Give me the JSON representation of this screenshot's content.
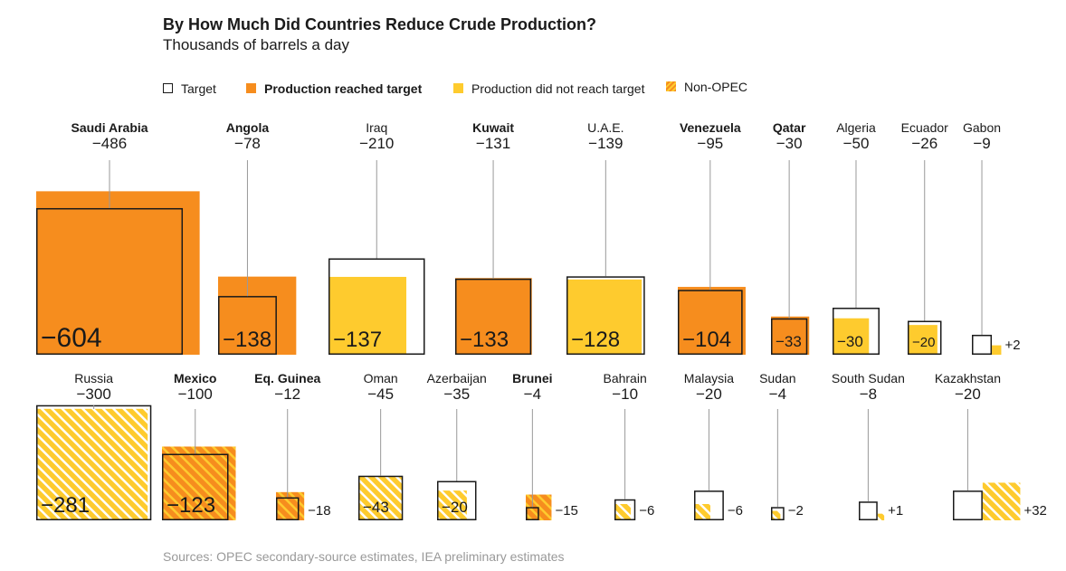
{
  "header": {
    "title": "By How Much Did Countries Reduce Crude Production?",
    "subtitle": "Thousands of barrels a day"
  },
  "legend": {
    "target": "Target",
    "reached": "Production reached target",
    "not_reached": "Production did not reach target",
    "non_opec": "Non-OPEC"
  },
  "source": "Sources: OPEC secondary-source estimates, IEA preliminary estimates",
  "colors": {
    "reached": "#f68d1e",
    "not_reached": "#fecb2e",
    "target_outline": "#1a1a1a",
    "leader_line": "#999999"
  },
  "chart_data": {
    "type": "square-area comparison",
    "title": "By How Much Did Countries Reduce Crude Production?",
    "subtitle": "Thousands of barrels a day",
    "rows": [
      {
        "group": "OPEC",
        "countries": [
          {
            "name": "Saudi Arabia",
            "target": "−486",
            "actual": "−604",
            "reached": true,
            "bold": true
          },
          {
            "name": "Angola",
            "target": "−78",
            "actual": "−138",
            "reached": true,
            "bold": true
          },
          {
            "name": "Iraq",
            "target": "−210",
            "actual": "−137",
            "reached": false,
            "bold": false
          },
          {
            "name": "Kuwait",
            "target": "−131",
            "actual": "−133",
            "reached": true,
            "bold": true
          },
          {
            "name": "U.A.E.",
            "target": "−139",
            "actual": "−128",
            "reached": false,
            "bold": false
          },
          {
            "name": "Venezuela",
            "target": "−95",
            "actual": "−104",
            "reached": true,
            "bold": true
          },
          {
            "name": "Qatar",
            "target": "−30",
            "actual": "−33",
            "reached": true,
            "bold": true
          },
          {
            "name": "Algeria",
            "target": "−50",
            "actual": "−30",
            "reached": false,
            "bold": false
          },
          {
            "name": "Ecuador",
            "target": "−26",
            "actual": "−20",
            "reached": false,
            "bold": false
          },
          {
            "name": "Gabon",
            "target": "−9",
            "actual": "+2",
            "reached": false,
            "bold": false
          }
        ]
      },
      {
        "group": "Non-OPEC",
        "countries": [
          {
            "name": "Russia",
            "target": "−300",
            "actual": "−281",
            "reached": false,
            "bold": false
          },
          {
            "name": "Mexico",
            "target": "−100",
            "actual": "−123",
            "reached": true,
            "bold": true
          },
          {
            "name": "Eq. Guinea",
            "target": "−12",
            "actual": "−18",
            "reached": true,
            "bold": true
          },
          {
            "name": "Oman",
            "target": "−45",
            "actual": "−43",
            "reached": false,
            "bold": false
          },
          {
            "name": "Azerbaijan",
            "target": "−35",
            "actual": "−20",
            "reached": false,
            "bold": false
          },
          {
            "name": "Brunei",
            "target": "−4",
            "actual": "−15",
            "reached": true,
            "bold": true
          },
          {
            "name": "Bahrain",
            "target": "−10",
            "actual": "−6",
            "reached": false,
            "bold": false
          },
          {
            "name": "Malaysia",
            "target": "−20",
            "actual": "−6",
            "reached": false,
            "bold": false
          },
          {
            "name": "Sudan",
            "target": "−4",
            "actual": "−2",
            "reached": false,
            "bold": false
          },
          {
            "name": "South Sudan",
            "target": "−8",
            "actual": "+1",
            "reached": false,
            "bold": false
          },
          {
            "name": "Kazakhstan",
            "target": "−20",
            "actual": "+32",
            "reached": false,
            "bold": false
          }
        ]
      }
    ]
  }
}
